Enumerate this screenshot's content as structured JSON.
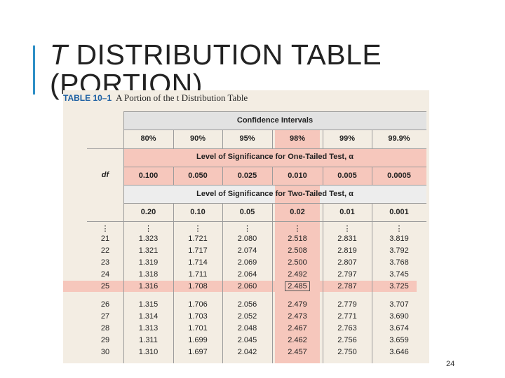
{
  "slide": {
    "title_italic": "T",
    "title_rest": " DISTRIBUTION TABLE",
    "title_line2": "(PORTION)",
    "page_number": "24"
  },
  "table": {
    "caption_number": "TABLE 10–1",
    "caption_text": "A Portion of the t Distribution Table",
    "header_confidence": "Confidence Intervals",
    "confidence_levels": [
      "80%",
      "90%",
      "95%",
      "98%",
      "99%",
      "99.9%"
    ],
    "header_one_tailed": "Level of Significance for One-Tailed Test, α",
    "df_label": "df",
    "one_tailed_alpha": [
      "0.100",
      "0.050",
      "0.025",
      "0.010",
      "0.005",
      "0.0005"
    ],
    "header_two_tailed": "Level of Significance for Two-Tailed Test, α",
    "two_tailed_alpha": [
      "0.20",
      "0.10",
      "0.05",
      "0.02",
      "0.01",
      "0.001"
    ],
    "ellipsis": "⋮",
    "rows": [
      {
        "df": "21",
        "values": [
          "1.323",
          "1.721",
          "2.080",
          "2.518",
          "2.831",
          "3.819"
        ]
      },
      {
        "df": "22",
        "values": [
          "1.321",
          "1.717",
          "2.074",
          "2.508",
          "2.819",
          "3.792"
        ]
      },
      {
        "df": "23",
        "values": [
          "1.319",
          "1.714",
          "2.069",
          "2.500",
          "2.807",
          "3.768"
        ]
      },
      {
        "df": "24",
        "values": [
          "1.318",
          "1.711",
          "2.064",
          "2.492",
          "2.797",
          "3.745"
        ]
      },
      {
        "df": "25",
        "values": [
          "1.316",
          "1.708",
          "2.060",
          "2.485",
          "2.787",
          "3.725"
        ]
      },
      {
        "df": "26",
        "values": [
          "1.315",
          "1.706",
          "2.056",
          "2.479",
          "2.779",
          "3.707"
        ]
      },
      {
        "df": "27",
        "values": [
          "1.314",
          "1.703",
          "2.052",
          "2.473",
          "2.771",
          "3.690"
        ]
      },
      {
        "df": "28",
        "values": [
          "1.313",
          "1.701",
          "2.048",
          "2.467",
          "2.763",
          "3.674"
        ]
      },
      {
        "df": "29",
        "values": [
          "1.311",
          "1.699",
          "2.045",
          "2.462",
          "2.756",
          "3.659"
        ]
      },
      {
        "df": "30",
        "values": [
          "1.310",
          "1.697",
          "2.042",
          "2.457",
          "2.750",
          "3.646"
        ]
      }
    ],
    "highlight_row_df": "25",
    "highlight_column": "98%",
    "colors": {
      "panel_background": "#f3ede3",
      "header_band": "#e2e2e2",
      "highlight": "#f6c7bc",
      "accent_bar": "#2e8fc6",
      "caption_number": "#1c5fa3"
    }
  }
}
